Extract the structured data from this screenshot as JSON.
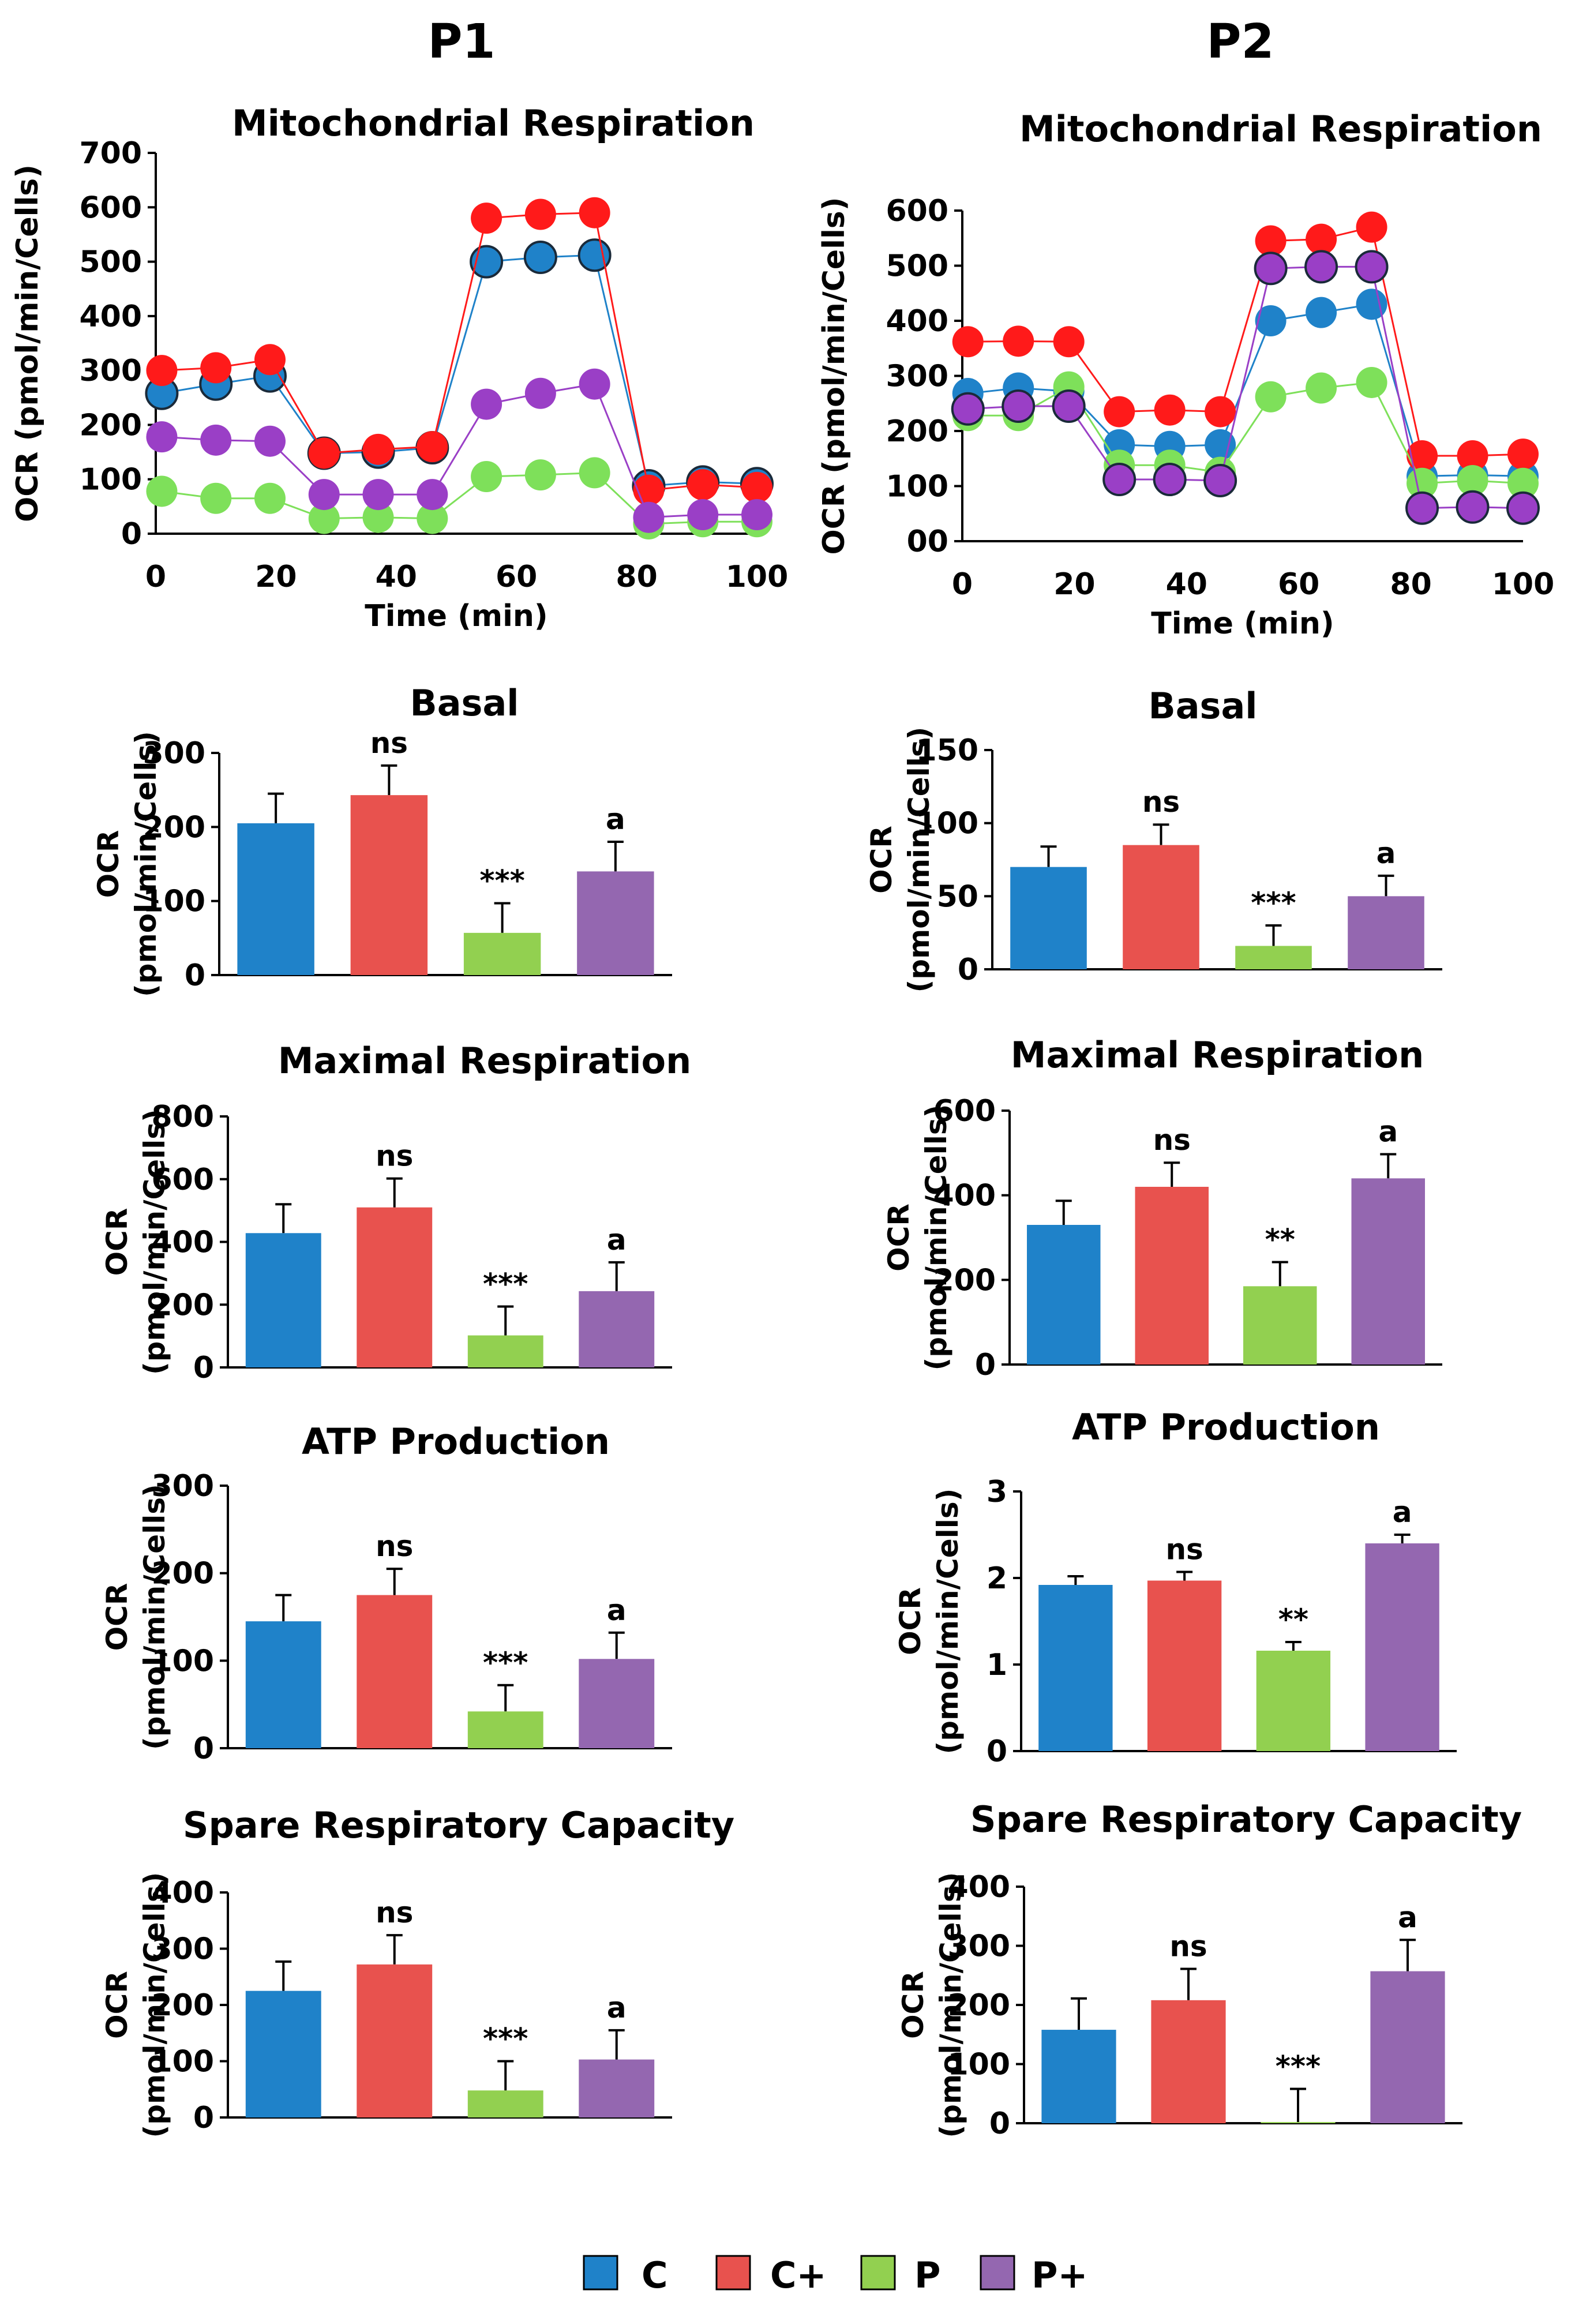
{
  "columns": [
    "P1",
    "P2"
  ],
  "legend": [
    {
      "key": "C",
      "label": "C",
      "color": "#1f82c9"
    },
    {
      "key": "Cplus",
      "label": "C+",
      "color": "#e8524e"
    },
    {
      "key": "P",
      "label": "P",
      "color": "#92d050"
    },
    {
      "key": "Pplus",
      "label": "P+",
      "color": "#9467b0"
    }
  ],
  "line_colors": {
    "C": "#1f82c9",
    "Cplus": "#ff1a1a",
    "P": "#7ee05a",
    "Pplus": "#9a3fc6"
  },
  "chart_data": [
    {
      "id": "p1-mito",
      "type": "line",
      "column": "P1",
      "title": "Mitochondrial Respiration",
      "xlabel": "Time (min)",
      "ylabel": "OCR (pmol/min/Cells)",
      "xlim": [
        0,
        100
      ],
      "xticks": [
        "0",
        "20",
        "40",
        "60",
        "80",
        "100"
      ],
      "ylim": [
        0,
        700
      ],
      "yticks": [
        "0",
        "100",
        "200",
        "300",
        "400",
        "500",
        "600",
        "700"
      ],
      "x": [
        1,
        10,
        19,
        28,
        37,
        46,
        55,
        64,
        73,
        82,
        91,
        100
      ],
      "series": [
        {
          "name": "C",
          "values": [
            258,
            275,
            290,
            148,
            150,
            158,
            500,
            508,
            512,
            88,
            95,
            92
          ]
        },
        {
          "name": "C+",
          "values": [
            300,
            305,
            320,
            148,
            155,
            160,
            580,
            587,
            590,
            80,
            90,
            85
          ]
        },
        {
          "name": "P",
          "values": [
            78,
            65,
            65,
            28,
            30,
            28,
            105,
            108,
            112,
            18,
            22,
            22
          ]
        },
        {
          "name": "P+",
          "values": [
            178,
            172,
            170,
            72,
            72,
            72,
            238,
            258,
            275,
            30,
            35,
            35
          ]
        }
      ],
      "outlined": [
        "C"
      ]
    },
    {
      "id": "p2-mito",
      "type": "line",
      "column": "P2",
      "title": "Mitochondrial Respiration",
      "xlabel": "Time (min)",
      "ylabel": "OCR (pmol/min/Cells)",
      "xlim": [
        0,
        100
      ],
      "xticks": [
        "0",
        "20",
        "40",
        "60",
        "80",
        "100"
      ],
      "ylim": [
        0,
        600
      ],
      "yticks": [
        "00",
        "100",
        "200",
        "300",
        "400",
        "500",
        "600"
      ],
      "x": [
        1,
        10,
        19,
        28,
        37,
        46,
        55,
        64,
        73,
        82,
        91,
        100
      ],
      "series": [
        {
          "name": "C",
          "values": [
            268,
            278,
            272,
            175,
            172,
            175,
            400,
            415,
            430,
            118,
            120,
            118
          ]
        },
        {
          "name": "C+",
          "values": [
            362,
            363,
            362,
            235,
            238,
            235,
            545,
            548,
            570,
            155,
            155,
            158
          ]
        },
        {
          "name": "P",
          "values": [
            228,
            228,
            280,
            138,
            138,
            125,
            262,
            278,
            288,
            105,
            110,
            105
          ]
        },
        {
          "name": "P+",
          "values": [
            240,
            245,
            245,
            112,
            112,
            110,
            495,
            498,
            498,
            60,
            62,
            60
          ]
        }
      ],
      "outlined": [
        "P+"
      ]
    },
    {
      "id": "p1-basal",
      "type": "bar",
      "column": "P1",
      "title": "Basal",
      "ylabel_top": "OCR",
      "ylabel_bottom": "(pmol/min/Cells)",
      "ylim": [
        0,
        300
      ],
      "yticks": [
        "0",
        "100",
        "200",
        "300"
      ],
      "categories": [
        "C",
        "C+",
        "P",
        "P+"
      ],
      "values": [
        205,
        243,
        57,
        140
      ],
      "errors": [
        40,
        40,
        40,
        40
      ],
      "annotations": [
        "",
        "ns",
        "***",
        "a"
      ]
    },
    {
      "id": "p2-basal",
      "type": "bar",
      "column": "P2",
      "title": "Basal",
      "ylabel_top": "OCR",
      "ylabel_bottom": "(pmol/min/Cells)",
      "ylim": [
        0,
        150
      ],
      "yticks": [
        "0",
        "50",
        "100",
        "150"
      ],
      "categories": [
        "C",
        "C+",
        "P",
        "P+"
      ],
      "values": [
        70,
        85,
        16,
        50
      ],
      "errors": [
        14,
        14,
        14,
        14
      ],
      "annotations": [
        "",
        "ns",
        "***",
        "a"
      ]
    },
    {
      "id": "p1-max",
      "type": "bar",
      "column": "P1",
      "title": "Maximal Respiration",
      "ylabel_top": "OCR",
      "ylabel_bottom": "(pmol/min/Cells)",
      "ylim": [
        0,
        800
      ],
      "yticks": [
        "0",
        "200",
        "400",
        "600",
        "800"
      ],
      "categories": [
        "C",
        "C+",
        "P",
        "P+"
      ],
      "values": [
        428,
        510,
        102,
        243
      ],
      "errors": [
        92,
        92,
        92,
        92
      ],
      "annotations": [
        "",
        "ns",
        "***",
        "a"
      ]
    },
    {
      "id": "p2-max",
      "type": "bar",
      "column": "P2",
      "title": "Maximal Respiration",
      "ylabel_top": "OCR",
      "ylabel_bottom": "(pmol/min/Cells)",
      "ylim": [
        0,
        600
      ],
      "yticks": [
        "0",
        "200",
        "400",
        "600"
      ],
      "categories": [
        "C",
        "C+",
        "P",
        "P+"
      ],
      "values": [
        330,
        420,
        185,
        440
      ],
      "errors": [
        57,
        57,
        57,
        57
      ],
      "annotations": [
        "",
        "ns",
        "**",
        "a"
      ]
    },
    {
      "id": "p1-atp",
      "type": "bar",
      "column": "P1",
      "title": "ATP Production",
      "ylabel_top": "OCR",
      "ylabel_bottom": "(pmol/min/Cells)",
      "ylim": [
        0,
        300
      ],
      "yticks": [
        "0",
        "100",
        "200",
        "300"
      ],
      "categories": [
        "C",
        "C+",
        "P",
        "P+"
      ],
      "values": [
        145,
        175,
        42,
        102
      ],
      "errors": [
        30,
        30,
        30,
        30
      ],
      "annotations": [
        "",
        "ns",
        "***",
        "a"
      ]
    },
    {
      "id": "p2-atp",
      "type": "bar",
      "column": "P2",
      "title": "ATP Production",
      "ylabel_top": "OCR",
      "ylabel_bottom": "(pmol/min/Cells)",
      "ylim": [
        0,
        3
      ],
      "yticks": [
        "0",
        "1",
        "2",
        "3"
      ],
      "categories": [
        "C",
        "C+",
        "P",
        "P+"
      ],
      "values": [
        1.92,
        1.97,
        1.16,
        2.4
      ],
      "errors": [
        0.1,
        0.1,
        0.1,
        0.1
      ],
      "annotations": [
        "",
        "ns",
        "**",
        "a"
      ]
    },
    {
      "id": "p1-spare",
      "type": "bar",
      "column": "P1",
      "title": "Spare Respiratory Capacity",
      "ylabel_top": "OCR",
      "ylabel_bottom": "(pmol/min/Cells)",
      "ylim": [
        0,
        400
      ],
      "yticks": [
        "0",
        "100",
        "200",
        "300",
        "400"
      ],
      "categories": [
        "C",
        "C+",
        "P",
        "P+"
      ],
      "values": [
        225,
        272,
        48,
        103
      ],
      "errors": [
        52,
        52,
        52,
        52
      ],
      "annotations": [
        "",
        "ns",
        "***",
        "a"
      ]
    },
    {
      "id": "p2-spare",
      "type": "bar",
      "column": "P2",
      "title": "Spare Respiratory Capacity",
      "ylabel_top": "OCR",
      "ylabel_bottom": "(pmol/min/Cells)",
      "ylim": [
        0,
        400
      ],
      "yticks": [
        "0",
        "100",
        "200",
        "300",
        "400"
      ],
      "categories": [
        "C",
        "C+",
        "P",
        "P+"
      ],
      "values": [
        158,
        208,
        2,
        257
      ],
      "errors": [
        53,
        53,
        56,
        53
      ],
      "annotations": [
        "",
        "ns",
        "***",
        "a"
      ]
    }
  ]
}
